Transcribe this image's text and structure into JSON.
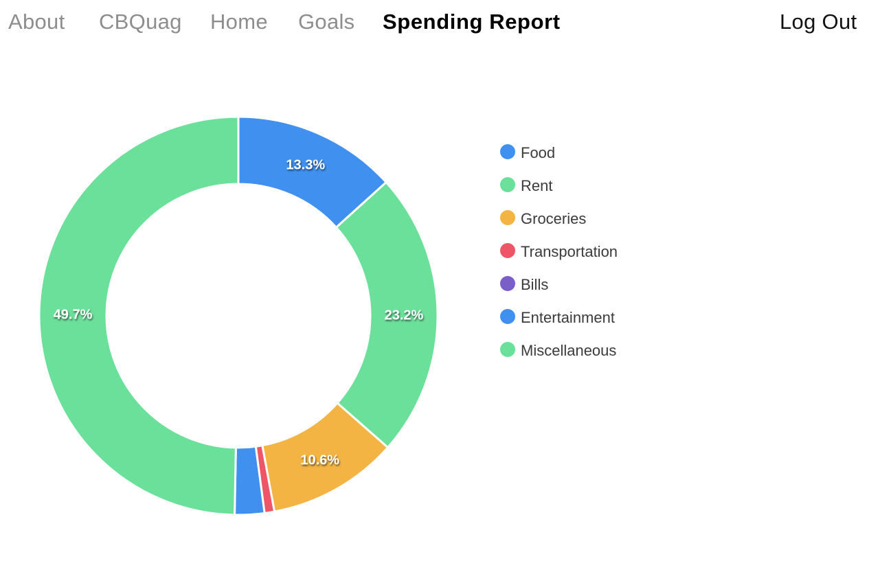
{
  "nav": {
    "items": [
      {
        "label": "About",
        "active": false
      },
      {
        "label": "CBQuag",
        "active": false
      },
      {
        "label": "Home",
        "active": false
      },
      {
        "label": "Goals",
        "active": false
      },
      {
        "label": "Spending Report",
        "active": true
      }
    ],
    "logout_label": "Log Out"
  },
  "chart_data": {
    "type": "pie",
    "donut": true,
    "title": "",
    "legend_position": "right",
    "categories": [
      "Food",
      "Rent",
      "Groceries",
      "Transportation",
      "Bills",
      "Entertainment",
      "Miscellaneous"
    ],
    "values": [
      13.3,
      23.2,
      10.6,
      0.8,
      0.0,
      2.4,
      49.7
    ],
    "colors": [
      "#4090f0",
      "#6be09b",
      "#f4b443",
      "#ee5566",
      "#7a5fc8",
      "#4090f0",
      "#6be09b"
    ],
    "data_labels": [
      "13.3%",
      "23.2%",
      "10.6%",
      "",
      "",
      "",
      "49.7%"
    ]
  }
}
